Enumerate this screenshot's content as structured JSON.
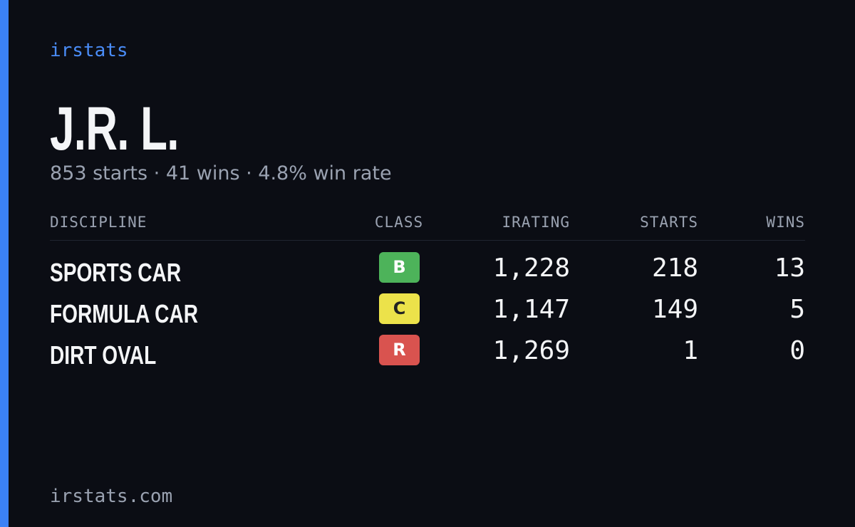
{
  "brand": "irstats",
  "name": "J.R. L.",
  "summary": "853 starts · 41 wins · 4.8% win rate",
  "table": {
    "headers": [
      "DISCIPLINE",
      "CLASS",
      "IRATING",
      "STARTS",
      "WINS"
    ],
    "rows": [
      [
        "SPORTS CAR",
        "B",
        "1,228",
        "218",
        "13"
      ],
      [
        "FORMULA CAR",
        "C",
        "1,147",
        "149",
        "5"
      ],
      [
        "DIRT OVAL",
        "R",
        "1,269",
        "1",
        "0"
      ]
    ]
  },
  "footer": "irstats.com"
}
